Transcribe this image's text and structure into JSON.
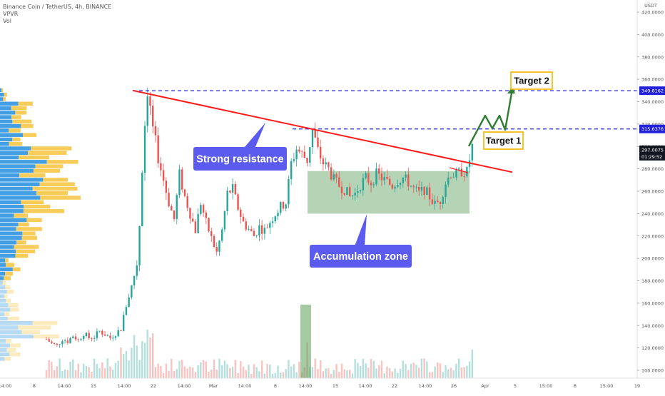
{
  "header": {
    "symbol_line": "Binance Coin / TetherUS, 4h, BINANCE",
    "indicator_1": "VPVR",
    "indicator_2": "Vol"
  },
  "chart_data": {
    "type": "candlestick",
    "title": "Binance Coin / TetherUS, 4h, BINANCE",
    "y_axis": {
      "unit": "USDT",
      "ylim": [
        95,
        430
      ],
      "ticks": [
        "100.0000",
        "120.0000",
        "140.0000",
        "160.0000",
        "180.0000",
        "200.0000",
        "220.0000",
        "240.0000",
        "260.0000",
        "280.0000",
        "300.0000",
        "320.0000",
        "340.0000",
        "360.0000",
        "380.0000",
        "400.0000",
        "420.0000"
      ]
    },
    "x_axis": {
      "ticks": [
        "14:00",
        "8",
        "14:00",
        "15",
        "14:00",
        "22",
        "14:00",
        "Mar",
        "14:00",
        "8",
        "14:00",
        "15",
        "14:00",
        "22",
        "14:00",
        "26",
        "14:00",
        "Apr",
        "5",
        "15:00",
        "8",
        "15:00",
        "19"
      ]
    },
    "price_path": [
      [
        0,
        128
      ],
      [
        2,
        124
      ],
      [
        4,
        122
      ],
      [
        6,
        128
      ],
      [
        8,
        126
      ],
      [
        10,
        131
      ],
      [
        12,
        127
      ],
      [
        14,
        133
      ],
      [
        16,
        129
      ],
      [
        18,
        130
      ],
      [
        20,
        135
      ],
      [
        22,
        132
      ],
      [
        24,
        129
      ],
      [
        26,
        133
      ],
      [
        28,
        137
      ],
      [
        30,
        158
      ],
      [
        32,
        175
      ],
      [
        34,
        195
      ],
      [
        35,
        230
      ],
      [
        36,
        280
      ],
      [
        37,
        320
      ],
      [
        38,
        350
      ],
      [
        40,
        318
      ],
      [
        42,
        290
      ],
      [
        44,
        270
      ],
      [
        46,
        250
      ],
      [
        48,
        235
      ],
      [
        50,
        275
      ],
      [
        52,
        255
      ],
      [
        54,
        240
      ],
      [
        56,
        225
      ],
      [
        58,
        250
      ],
      [
        60,
        232
      ],
      [
        62,
        218
      ],
      [
        64,
        205
      ],
      [
        66,
        225
      ],
      [
        68,
        258
      ],
      [
        70,
        262
      ],
      [
        72,
        245
      ],
      [
        74,
        232
      ],
      [
        76,
        226
      ],
      [
        78,
        220
      ],
      [
        80,
        228
      ],
      [
        82,
        225
      ],
      [
        84,
        233
      ],
      [
        86,
        240
      ],
      [
        88,
        246
      ],
      [
        90,
        250
      ],
      [
        92,
        285
      ],
      [
        94,
        298
      ],
      [
        96,
        293
      ],
      [
        98,
        288
      ],
      [
        100,
        315
      ],
      [
        102,
        296
      ],
      [
        104,
        285
      ],
      [
        106,
        280
      ],
      [
        108,
        270
      ],
      [
        110,
        265
      ],
      [
        112,
        262
      ],
      [
        114,
        255
      ],
      [
        116,
        258
      ],
      [
        118,
        266
      ],
      [
        120,
        272
      ],
      [
        122,
        268
      ],
      [
        124,
        275
      ],
      [
        126,
        272
      ],
      [
        128,
        268
      ],
      [
        130,
        265
      ],
      [
        132,
        270
      ],
      [
        134,
        272
      ],
      [
        136,
        268
      ],
      [
        138,
        262
      ],
      [
        140,
        258
      ],
      [
        142,
        262
      ],
      [
        144,
        255
      ],
      [
        146,
        248
      ],
      [
        148,
        252
      ],
      [
        150,
        268
      ],
      [
        152,
        276
      ],
      [
        154,
        274
      ],
      [
        156,
        278
      ],
      [
        158,
        277
      ],
      [
        160,
        300
      ]
    ],
    "levels": [
      {
        "label": "349.8162",
        "price": 349.8162,
        "style": "dashed"
      },
      {
        "label": "315.6376",
        "price": 315.6376,
        "style": "dashed"
      }
    ],
    "last_price": "297.0075",
    "countdown": "01:29:52",
    "annotations": [
      {
        "id": "resistance",
        "text": "Strong resistance"
      },
      {
        "id": "accumulation",
        "text": "Accumulation zone"
      },
      {
        "id": "target1",
        "text": "Target 1"
      },
      {
        "id": "target2",
        "text": "Target 2"
      }
    ],
    "zones": [
      {
        "name": "accumulation",
        "price_low": 240,
        "price_high": 278
      }
    ],
    "trendline": {
      "from_price": 350,
      "to_price": 277,
      "color": "#ff1a1a"
    },
    "colors": {
      "up": "#26a69a",
      "down": "#ef5350",
      "trendline": "#ff1a1a",
      "level_line": "#2222dd",
      "zone_fill": "#5a9e5a",
      "callout_bg": "#5b5bf0",
      "target_border": "#f5b400",
      "projection": "#2e7d32",
      "vp_blue": "#2f94e0",
      "vp_yellow": "#f7c746"
    }
  }
}
